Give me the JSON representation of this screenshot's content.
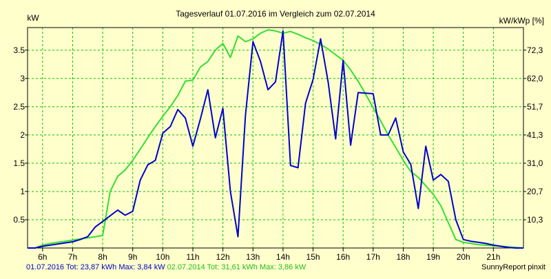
{
  "colors": {
    "background": "#ffffcc",
    "grid": "#00c000",
    "axis": "#000000",
    "series_2016": "#0000cc",
    "series_2014": "#33dd33"
  },
  "chart_data": {
    "type": "line",
    "title": "Tagesverlauf 01.07.2016 im Vergleich zum 02.07.2014",
    "ylabel_left": "kW",
    "ylabel_right": "kW/kWp [%]",
    "xlim": [
      5.5,
      22.0
    ],
    "ylim": [
      0,
      3.9
    ],
    "x_ticks": [
      6,
      7,
      8,
      9,
      10,
      11,
      12,
      13,
      14,
      15,
      16,
      17,
      18,
      19,
      20,
      21
    ],
    "x_tick_labels": [
      "6h",
      "7h",
      "8h",
      "9h",
      "10h",
      "11h",
      "12h",
      "13h",
      "14h",
      "15h",
      "16h",
      "17h",
      "18h",
      "19h",
      "20h",
      "21h"
    ],
    "y_ticks_left": [
      0.5,
      1,
      1.5,
      2,
      2.5,
      3,
      3.5
    ],
    "y_tick_labels_left": [
      "0.5",
      "1",
      "1.5",
      "2",
      "2.5",
      "3",
      "3.5"
    ],
    "y_ticks_right": [
      0.5,
      1.0,
      1.5,
      2.0,
      2.5,
      3.0,
      3.5
    ],
    "y_tick_labels_right": [
      "10,3",
      "20,7",
      "31,0",
      "41,3",
      "51,7",
      "62,0",
      "72,3"
    ],
    "grid": true,
    "legend": "bottom",
    "series": [
      {
        "name": "01.07.2016",
        "color": "#0000cc",
        "x": [
          5.5,
          5.75,
          6.0,
          6.25,
          6.5,
          6.75,
          7.0,
          7.25,
          7.5,
          7.75,
          8.0,
          8.25,
          8.5,
          8.75,
          9.0,
          9.25,
          9.5,
          9.75,
          10.0,
          10.25,
          10.5,
          10.75,
          11.0,
          11.25,
          11.5,
          11.75,
          12.0,
          12.25,
          12.5,
          12.75,
          13.0,
          13.25,
          13.5,
          13.75,
          14.0,
          14.25,
          14.5,
          14.75,
          15.0,
          15.25,
          15.5,
          15.75,
          16.0,
          16.25,
          16.5,
          16.75,
          17.0,
          17.25,
          17.5,
          17.75,
          18.0,
          18.25,
          18.5,
          18.75,
          19.0,
          19.25,
          19.5,
          19.75,
          20.0,
          20.25,
          20.5,
          20.75,
          21.0,
          21.25,
          21.5,
          21.75,
          22.0
        ],
        "y": [
          0.0,
          0.0,
          0.03,
          0.05,
          0.07,
          0.09,
          0.11,
          0.15,
          0.2,
          0.37,
          0.47,
          0.57,
          0.67,
          0.58,
          0.65,
          1.2,
          1.47,
          1.55,
          2.03,
          2.15,
          2.45,
          2.3,
          1.8,
          2.28,
          2.8,
          1.95,
          2.47,
          1.0,
          0.2,
          2.35,
          3.65,
          3.3,
          2.8,
          2.94,
          3.84,
          1.46,
          1.42,
          2.56,
          2.98,
          3.7,
          2.94,
          1.93,
          3.32,
          1.82,
          2.75,
          2.74,
          2.73,
          2.0,
          2.0,
          2.3,
          1.7,
          1.48,
          0.7,
          1.8,
          1.2,
          1.3,
          1.18,
          0.5,
          0.15,
          0.12,
          0.1,
          0.08,
          0.05,
          0.03,
          0.01,
          0.0,
          0.0
        ]
      },
      {
        "name": "02.07.2014",
        "color": "#33dd33",
        "x": [
          5.5,
          5.75,
          6.0,
          6.25,
          6.5,
          6.75,
          7.0,
          7.25,
          7.5,
          7.75,
          8.0,
          8.25,
          8.5,
          8.75,
          9.0,
          9.25,
          9.5,
          9.75,
          10.0,
          10.25,
          10.5,
          10.75,
          11.0,
          11.25,
          11.5,
          11.75,
          12.0,
          12.25,
          12.5,
          12.75,
          13.0,
          13.25,
          13.5,
          13.75,
          14.0,
          14.25,
          14.5,
          14.75,
          15.0,
          15.25,
          15.5,
          15.75,
          16.0,
          16.25,
          16.5,
          16.75,
          17.0,
          17.25,
          17.5,
          17.75,
          18.0,
          18.25,
          18.5,
          18.75,
          19.0,
          19.25,
          19.5,
          19.75,
          20.0,
          20.25,
          20.5,
          20.75,
          21.0,
          21.25,
          21.5,
          21.75,
          22.0
        ],
        "y": [
          0.0,
          0.0,
          0.05,
          0.08,
          0.1,
          0.12,
          0.14,
          0.16,
          0.18,
          0.2,
          0.22,
          1.0,
          1.27,
          1.38,
          1.55,
          1.75,
          1.95,
          2.15,
          2.33,
          2.5,
          2.7,
          2.95,
          2.97,
          3.2,
          3.3,
          3.5,
          3.62,
          3.37,
          3.75,
          3.65,
          3.7,
          3.8,
          3.86,
          3.84,
          3.8,
          3.83,
          3.78,
          3.72,
          3.67,
          3.6,
          3.52,
          3.42,
          3.32,
          3.15,
          2.95,
          2.72,
          2.48,
          2.25,
          2.0,
          1.78,
          1.55,
          1.35,
          1.25,
          1.1,
          0.95,
          0.75,
          0.45,
          0.15,
          0.1,
          0.08,
          0.06,
          0.05,
          0.04,
          0.03,
          0.02,
          0.01,
          0.0
        ]
      }
    ]
  },
  "footer": {
    "series_2016_text": "01.07.2016 Tot: 23,87 kWh Max: 3,84 kW",
    "series_2014_text": "02.07.2014 Tot: 31,61 kWh Max: 3,86 kW",
    "credit": "SunnyReport pinxit"
  }
}
